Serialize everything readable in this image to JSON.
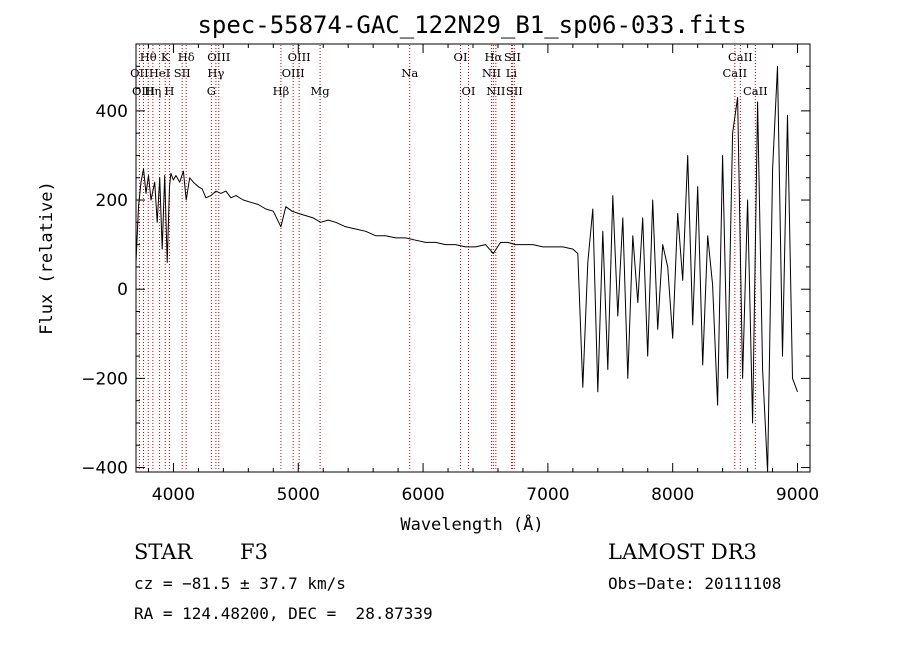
{
  "chart_data": {
    "type": "line",
    "title": "spec-55874-GAC_122N29_B1_sp06-033.fits",
    "xlabel": "Wavelength (Å)",
    "ylabel": "Flux (relative)",
    "xlim": [
      3700,
      9100
    ],
    "ylim": [
      -410,
      550
    ],
    "xticks": [
      4000,
      5000,
      6000,
      7000,
      8000,
      9000
    ],
    "yticks": [
      -400,
      -200,
      0,
      200,
      400
    ],
    "series": [
      {
        "name": "spectrum",
        "x": [
          3700,
          3720,
          3740,
          3760,
          3780,
          3800,
          3820,
          3850,
          3870,
          3890,
          3910,
          3930,
          3950,
          3968,
          3980,
          4000,
          4020,
          4050,
          4080,
          4102,
          4130,
          4160,
          4200,
          4230,
          4260,
          4300,
          4340,
          4380,
          4420,
          4460,
          4500,
          4560,
          4620,
          4680,
          4740,
          4800,
          4861,
          4900,
          4950,
          5000,
          5060,
          5120,
          5180,
          5240,
          5300,
          5380,
          5460,
          5540,
          5620,
          5700,
          5780,
          5860,
          5940,
          6020,
          6100,
          6180,
          6260,
          6340,
          6420,
          6500,
          6563,
          6620,
          6680,
          6740,
          6800,
          6880,
          6960,
          7040,
          7120,
          7200,
          7240,
          7280,
          7320,
          7360,
          7400,
          7440,
          7480,
          7520,
          7560,
          7600,
          7640,
          7680,
          7720,
          7760,
          7800,
          7840,
          7880,
          7920,
          7960,
          8000,
          8040,
          8080,
          8120,
          8160,
          8200,
          8240,
          8280,
          8320,
          8360,
          8400,
          8440,
          8480,
          8520,
          8560,
          8600,
          8640,
          8680,
          8720,
          8760,
          8800,
          8840,
          8880,
          8920,
          8960,
          9000
        ],
        "y": [
          60,
          185,
          240,
          270,
          215,
          255,
          200,
          240,
          150,
          250,
          90,
          255,
          60,
          230,
          260,
          245,
          255,
          240,
          265,
          200,
          250,
          240,
          230,
          225,
          205,
          210,
          220,
          215,
          220,
          205,
          210,
          200,
          195,
          190,
          180,
          175,
          140,
          185,
          175,
          170,
          165,
          160,
          150,
          155,
          150,
          140,
          135,
          130,
          120,
          120,
          115,
          115,
          110,
          105,
          105,
          100,
          100,
          95,
          95,
          100,
          80,
          105,
          105,
          100,
          100,
          100,
          95,
          95,
          95,
          90,
          80,
          -220,
          60,
          180,
          -230,
          130,
          -180,
          210,
          -60,
          160,
          -200,
          120,
          -30,
          160,
          -150,
          200,
          -90,
          100,
          50,
          -110,
          170,
          20,
          300,
          -80,
          230,
          -170,
          120,
          10,
          -260,
          300,
          -200,
          350,
          430,
          -200,
          200,
          -300,
          420,
          -180,
          -410,
          270,
          500,
          -150,
          390,
          -200,
          -230
        ]
      }
    ],
    "spectral_lines": [
      {
        "label": "Hθ",
        "x": 3798,
        "row": 1
      },
      {
        "label": "OII",
        "x": 3727,
        "row": 2
      },
      {
        "label": "OIII",
        "x": 3760,
        "row": 3
      },
      {
        "label": "K",
        "x": 3934,
        "row": 1
      },
      {
        "label": "HeI",
        "x": 3889,
        "row": 2
      },
      {
        "label": "Hη",
        "x": 3835,
        "row": 3
      },
      {
        "label": "SII",
        "x": 4070,
        "row": 2
      },
      {
        "label": "H",
        "x": 3968,
        "row": 3
      },
      {
        "label": "Hδ",
        "x": 4102,
        "row": 1
      },
      {
        "label": "OIII",
        "x": 4363,
        "row": 1
      },
      {
        "label": "Hγ",
        "x": 4340,
        "row": 2
      },
      {
        "label": "G",
        "x": 4304,
        "row": 3
      },
      {
        "label": "OIII",
        "x": 5007,
        "row": 1
      },
      {
        "label": "OIII",
        "x": 4959,
        "row": 2
      },
      {
        "label": "Hβ",
        "x": 4861,
        "row": 3
      },
      {
        "label": "Mg",
        "x": 5175,
        "row": 3
      },
      {
        "label": "Na",
        "x": 5893,
        "row": 2
      },
      {
        "label": "OI",
        "x": 6300,
        "row": 1
      },
      {
        "label": "OI",
        "x": 6364,
        "row": 3
      },
      {
        "label": "Hα",
        "x": 6563,
        "row": 1
      },
      {
        "label": "NII",
        "x": 6548,
        "row": 2
      },
      {
        "label": "NII",
        "x": 6583,
        "row": 3
      },
      {
        "label": "SII",
        "x": 6716,
        "row": 1
      },
      {
        "label": "Li",
        "x": 6708,
        "row": 2
      },
      {
        "label": "SII",
        "x": 6731,
        "row": 3
      },
      {
        "label": "CaII",
        "x": 8542,
        "row": 1
      },
      {
        "label": "CaII",
        "x": 8498,
        "row": 2
      },
      {
        "label": "CaII",
        "x": 8662,
        "row": 3
      }
    ]
  },
  "info": {
    "object_type": "STAR",
    "subclass": "F3",
    "survey": "LAMOST DR3",
    "cz": "cz = −81.5 ± 37.7 km/s",
    "obs_date": "Obs−Date: 20111108",
    "coords": "RA = 124.48200, DEC =  28.87339"
  },
  "colors": {
    "line_marker": "#cc0000",
    "spectrum": "#000000"
  }
}
